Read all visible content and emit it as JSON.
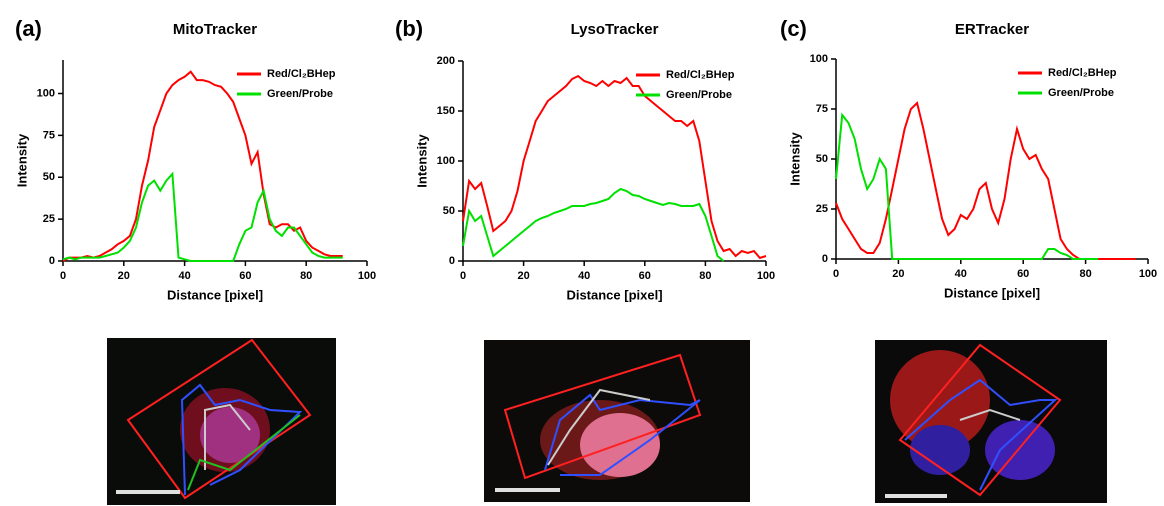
{
  "chart_data": [
    {
      "type": "line",
      "panel": "(a)",
      "title": "MitoTracker",
      "x_label": "Distance [pixel]",
      "y_label": "Intensity",
      "xlim": [
        0,
        100
      ],
      "xticks": [
        0,
        20,
        40,
        60,
        80,
        100
      ],
      "ylim": [
        0,
        120
      ],
      "yticks": [
        0,
        25,
        50,
        75,
        100
      ],
      "x": [
        0,
        2,
        4,
        6,
        8,
        10,
        12,
        14,
        16,
        18,
        20,
        22,
        24,
        26,
        28,
        30,
        32,
        34,
        36,
        38,
        40,
        42,
        44,
        46,
        48,
        50,
        52,
        54,
        56,
        58,
        60,
        62,
        64,
        66,
        68,
        70,
        72,
        74,
        76,
        78,
        80,
        82,
        84,
        86,
        88,
        90,
        92
      ],
      "series": [
        {
          "name": "Red/Cl₂BHep",
          "color": "#ff0000",
          "values": [
            0,
            2,
            2,
            2,
            3,
            2,
            3,
            5,
            7,
            10,
            12,
            15,
            25,
            45,
            60,
            80,
            90,
            100,
            105,
            108,
            110,
            113,
            108,
            108,
            107,
            105,
            104,
            100,
            95,
            85,
            75,
            58,
            65,
            40,
            22,
            20,
            22,
            22,
            18,
            20,
            12,
            8,
            6,
            4,
            3,
            3,
            3
          ]
        },
        {
          "name": "Green/Probe",
          "color": "#00e000",
          "values": [
            1,
            2,
            1,
            2,
            2,
            2,
            2,
            3,
            4,
            5,
            8,
            12,
            20,
            35,
            45,
            48,
            42,
            48,
            52,
            2,
            1,
            0,
            0,
            0,
            0,
            0,
            0,
            0,
            0,
            10,
            18,
            20,
            35,
            42,
            25,
            18,
            15,
            20,
            20,
            15,
            10,
            5,
            3,
            2,
            2,
            2,
            2
          ]
        }
      ]
    },
    {
      "type": "line",
      "panel": "(b)",
      "title": "LysoTracker",
      "x_label": "Distance [pixel]",
      "y_label": "Intensity",
      "xlim": [
        0,
        100
      ],
      "xticks": [
        0,
        20,
        40,
        60,
        80,
        100
      ],
      "ylim": [
        0,
        200
      ],
      "yticks": [
        0,
        50,
        100,
        150,
        200
      ],
      "x": [
        0,
        2,
        4,
        6,
        8,
        10,
        12,
        14,
        16,
        18,
        20,
        22,
        24,
        26,
        28,
        30,
        32,
        34,
        36,
        38,
        40,
        42,
        44,
        46,
        48,
        50,
        52,
        54,
        56,
        58,
        60,
        62,
        64,
        66,
        68,
        70,
        72,
        74,
        76,
        78,
        80,
        82,
        84,
        86,
        88,
        90,
        92,
        94,
        96,
        98,
        100
      ],
      "series": [
        {
          "name": "Red/Cl₂BHep",
          "color": "#ff0000",
          "values": [
            40,
            80,
            72,
            78,
            55,
            30,
            35,
            40,
            50,
            70,
            100,
            120,
            140,
            150,
            160,
            165,
            170,
            175,
            182,
            185,
            180,
            178,
            175,
            180,
            175,
            180,
            178,
            183,
            175,
            175,
            165,
            160,
            155,
            150,
            145,
            140,
            140,
            135,
            140,
            120,
            80,
            40,
            20,
            10,
            12,
            5,
            10,
            8,
            10,
            3,
            5
          ]
        },
        {
          "name": "Green/Probe",
          "color": "#00e000",
          "values": [
            15,
            50,
            40,
            45,
            25,
            5,
            10,
            15,
            20,
            25,
            30,
            35,
            40,
            43,
            45,
            48,
            50,
            52,
            55,
            55,
            55,
            57,
            58,
            60,
            62,
            68,
            72,
            70,
            66,
            65,
            62,
            60,
            58,
            56,
            58,
            57,
            55,
            55,
            55,
            57,
            45,
            25,
            5,
            0,
            null,
            null,
            null,
            null,
            null,
            null,
            null
          ]
        }
      ]
    },
    {
      "type": "line",
      "panel": "(c)",
      "title": "ERTracker",
      "x_label": "Distance [pixel]",
      "y_label": "Intensity",
      "xlim": [
        0,
        100
      ],
      "xticks": [
        0,
        20,
        40,
        60,
        80,
        100
      ],
      "ylim": [
        0,
        100
      ],
      "yticks": [
        0,
        25,
        50,
        75,
        100
      ],
      "x": [
        0,
        2,
        4,
        6,
        8,
        10,
        12,
        14,
        16,
        18,
        20,
        22,
        24,
        26,
        28,
        30,
        32,
        34,
        36,
        38,
        40,
        42,
        44,
        46,
        48,
        50,
        52,
        54,
        56,
        58,
        60,
        62,
        64,
        66,
        68,
        70,
        72,
        74,
        76,
        78,
        80,
        82,
        84,
        86,
        88,
        90,
        92,
        94,
        96
      ],
      "series": [
        {
          "name": "Red/Cl₂BHep",
          "color": "#ff0000",
          "values": [
            28,
            20,
            15,
            10,
            5,
            3,
            3,
            8,
            20,
            35,
            50,
            65,
            75,
            78,
            65,
            50,
            35,
            20,
            12,
            15,
            22,
            20,
            25,
            35,
            38,
            25,
            18,
            30,
            50,
            65,
            55,
            50,
            52,
            45,
            40,
            25,
            10,
            5,
            2,
            0,
            0,
            0,
            0,
            0,
            0,
            0,
            0,
            0,
            0
          ]
        },
        {
          "name": "Green/Probe",
          "color": "#00e000",
          "values": [
            40,
            72,
            68,
            60,
            45,
            35,
            40,
            50,
            45,
            0,
            0,
            0,
            0,
            0,
            0,
            0,
            0,
            0,
            0,
            0,
            0,
            0,
            0,
            0,
            0,
            0,
            0,
            0,
            0,
            0,
            0,
            0,
            0,
            0,
            5,
            5,
            3,
            2,
            0,
            0,
            0,
            0,
            0,
            null,
            null,
            null,
            null,
            null,
            null
          ]
        }
      ]
    }
  ]
}
